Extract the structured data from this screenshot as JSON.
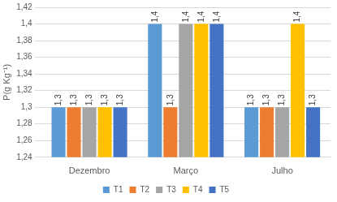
{
  "chart_data": {
    "type": "bar",
    "y_label": "P(g Kg⁻¹)",
    "categories": [
      "Dezembro",
      "Março",
      "Julho"
    ],
    "series": [
      {
        "name": "T1",
        "color": "#5b9bd5",
        "values": [
          1.3,
          1.4,
          1.3
        ],
        "value_labels": [
          "1,3",
          "1,4",
          "1,3"
        ]
      },
      {
        "name": "T2",
        "color": "#ed7d31",
        "values": [
          1.3,
          1.3,
          1.3
        ],
        "value_labels": [
          "1,3",
          "1,3",
          "1,3"
        ]
      },
      {
        "name": "T3",
        "color": "#a5a5a5",
        "values": [
          1.3,
          1.4,
          1.3
        ],
        "value_labels": [
          "1,3",
          "1,4",
          "1,3"
        ]
      },
      {
        "name": "T4",
        "color": "#ffc000",
        "values": [
          1.3,
          1.4,
          1.4
        ],
        "value_labels": [
          "1,3",
          "1,4",
          "1,4"
        ]
      },
      {
        "name": "T5",
        "color": "#4472c4",
        "values": [
          1.3,
          1.4,
          1.3
        ],
        "value_labels": [
          "1,3",
          "1,4",
          "1,3"
        ]
      }
    ],
    "ylim": [
      1.24,
      1.42
    ],
    "yticks": [
      {
        "value": 1.24,
        "label": "1,24"
      },
      {
        "value": 1.26,
        "label": "1,26"
      },
      {
        "value": 1.28,
        "label": "1,28"
      },
      {
        "value": 1.3,
        "label": "1,3"
      },
      {
        "value": 1.32,
        "label": "1,32"
      },
      {
        "value": 1.34,
        "label": "1,34"
      },
      {
        "value": 1.36,
        "label": "1,36"
      },
      {
        "value": 1.38,
        "label": "1,38"
      },
      {
        "value": 1.4,
        "label": "1,4"
      },
      {
        "value": 1.42,
        "label": "1,42"
      }
    ],
    "grid": true,
    "legend": "bottom",
    "data_labels": true
  }
}
